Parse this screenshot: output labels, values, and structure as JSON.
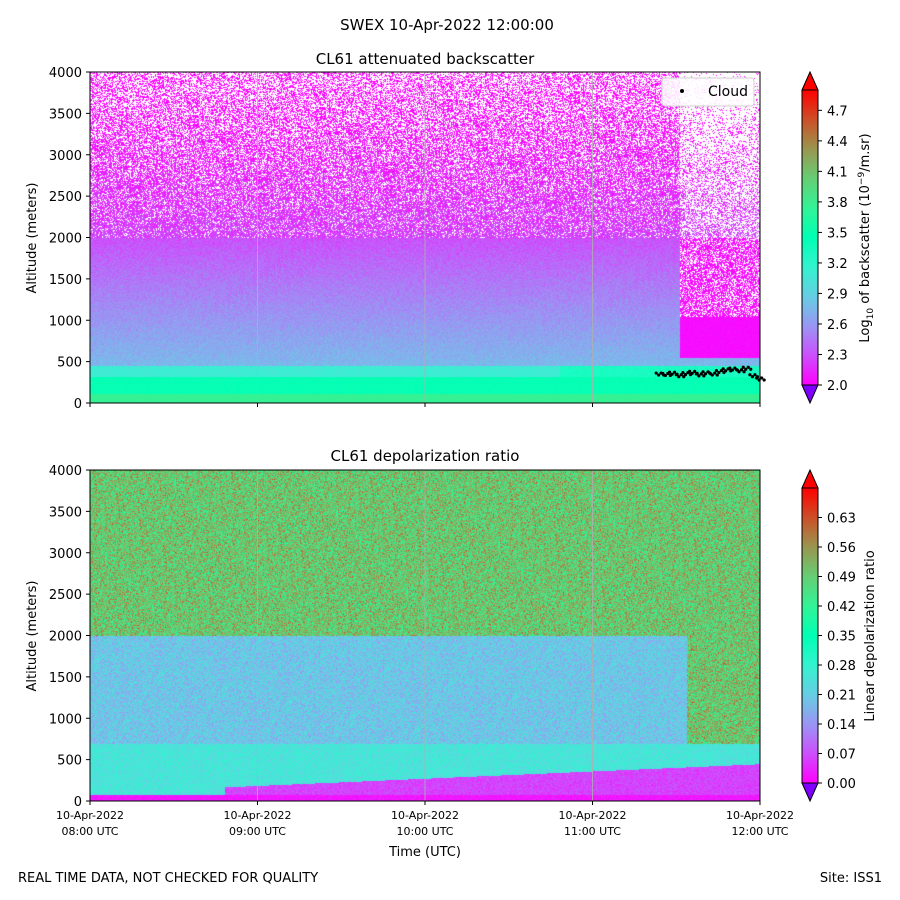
{
  "figure": {
    "suptitle": "SWEX 10-Apr-2022 12:00:00",
    "footer_left": "REAL TIME DATA, NOT CHECKED FOR QUALITY",
    "footer_right": "Site: ISS1",
    "xlabel": "Time (UTC)"
  },
  "chart_data": [
    {
      "type": "heatmap",
      "title": "CL61 attenuated backscatter",
      "ylabel": "Altitude (meters)",
      "xlabel": "",
      "x_ticks": [
        {
          "line1": "",
          "line2": ""
        },
        {
          "line1": "",
          "line2": ""
        },
        {
          "line1": "",
          "line2": ""
        },
        {
          "line1": "",
          "line2": ""
        },
        {
          "line1": "",
          "line2": ""
        }
      ],
      "xlim_hours": [
        8,
        12
      ],
      "ylim": [
        0,
        4000
      ],
      "y_ticks": [
        "0",
        "500",
        "1000",
        "1500",
        "2000",
        "2500",
        "3000",
        "3500",
        "4000"
      ],
      "grid": "vertical",
      "colormap": "rainbow",
      "colorbar": {
        "label_main": "Log",
        "label_sub": "10",
        "label_mid": " of backscatter (10",
        "label_sup": "−9",
        "label_end": "/m.sr)",
        "range": [
          2.0,
          4.9
        ],
        "ticks": [
          "2.0",
          "2.3",
          "2.6",
          "2.9",
          "3.2",
          "3.5",
          "3.8",
          "4.1",
          "4.4",
          "4.7"
        ],
        "extend": "both"
      },
      "legend": {
        "label": "Cloud",
        "position": "top-right",
        "marker_color": "#000000"
      },
      "cloud_base": {
        "time_hours": [
          11.38,
          11.42,
          11.46,
          11.5,
          11.54,
          11.58,
          11.62,
          11.66,
          11.7,
          11.74,
          11.78,
          11.82,
          11.86,
          11.9,
          11.94,
          11.98
        ],
        "altitude_m": [
          350,
          345,
          360,
          330,
          355,
          370,
          340,
          365,
          350,
          380,
          400,
          410,
          390,
          420,
          330,
          290
        ]
      }
    },
    {
      "type": "heatmap",
      "title": "CL61 depolarization ratio",
      "ylabel": "Altitude (meters)",
      "xlabel": "Time (UTC)",
      "x_ticks": [
        {
          "line1": "10-Apr-2022",
          "line2": "08:00 UTC"
        },
        {
          "line1": "10-Apr-2022",
          "line2": "09:00 UTC"
        },
        {
          "line1": "10-Apr-2022",
          "line2": "10:00 UTC"
        },
        {
          "line1": "10-Apr-2022",
          "line2": "11:00 UTC"
        },
        {
          "line1": "10-Apr-2022",
          "line2": "12:00 UTC"
        }
      ],
      "xlim_hours": [
        8,
        12
      ],
      "ylim": [
        0,
        4000
      ],
      "y_ticks": [
        "0",
        "500",
        "1000",
        "1500",
        "2000",
        "2500",
        "3000",
        "3500",
        "4000"
      ],
      "grid": "vertical",
      "colormap": "rainbow",
      "colorbar": {
        "label_main": "Linear depolarization ratio",
        "range": [
          0.0,
          0.7
        ],
        "ticks": [
          "0.00",
          "0.07",
          "0.14",
          "0.21",
          "0.28",
          "0.35",
          "0.42",
          "0.49",
          "0.56",
          "0.63"
        ],
        "extend": "both"
      }
    }
  ]
}
